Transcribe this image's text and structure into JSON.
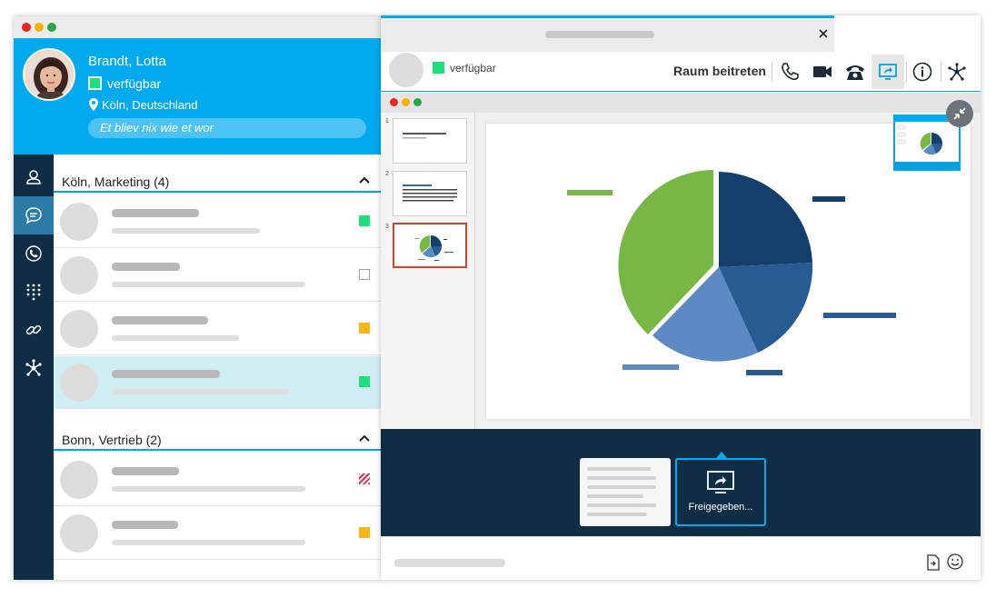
{
  "user": {
    "name": "Brandt, Lotta",
    "presence": "verfügbar",
    "location": "Köln, Deutschland",
    "status_message": "Et bliev nix wie et wor"
  },
  "nav": {
    "items": [
      {
        "icon": "contact-icon",
        "active": false
      },
      {
        "icon": "chat-icon",
        "active": true
      },
      {
        "icon": "call-history-icon",
        "active": false
      },
      {
        "icon": "dialpad-icon",
        "active": false
      },
      {
        "icon": "link-icon",
        "active": false
      },
      {
        "icon": "network-icon",
        "active": false
      }
    ]
  },
  "groups": [
    {
      "title": "Köln, Marketing (4)",
      "contacts": [
        {
          "status": "green",
          "selected": false
        },
        {
          "status": "empty",
          "selected": false
        },
        {
          "status": "orange",
          "selected": false
        },
        {
          "status": "green",
          "selected": true
        }
      ]
    },
    {
      "title": "Bonn, Vertrieb (2)",
      "contacts": [
        {
          "status": "hatched-red",
          "selected": false
        },
        {
          "status": "orange",
          "selected": false
        }
      ]
    }
  ],
  "chat": {
    "contact_presence": "verfügbar",
    "join_room_label": "Raum beitreten",
    "toolbar": [
      "phone-icon",
      "video-icon",
      "desk-phone-icon",
      "screen-share-icon",
      "info-icon",
      "network-icon"
    ],
    "active_tool": "screen-share-icon"
  },
  "presentation": {
    "thumbnail_numbers": [
      "1",
      "2",
      "3"
    ],
    "active_thumbnail": "3"
  },
  "share_picker": {
    "shared_label": "Freigegeben..."
  },
  "colors": {
    "accent": "#00aaee",
    "dark_navy": "#0f2d44",
    "presence_green": "#1ee07a",
    "away_orange": "#fbb516",
    "busy_red": "#e0304a",
    "pie_green": "#76b843",
    "pie_dark_blue": "#123f6b",
    "pie_mid_blue": "#275b91",
    "pie_light_blue": "#5c8ac4"
  }
}
